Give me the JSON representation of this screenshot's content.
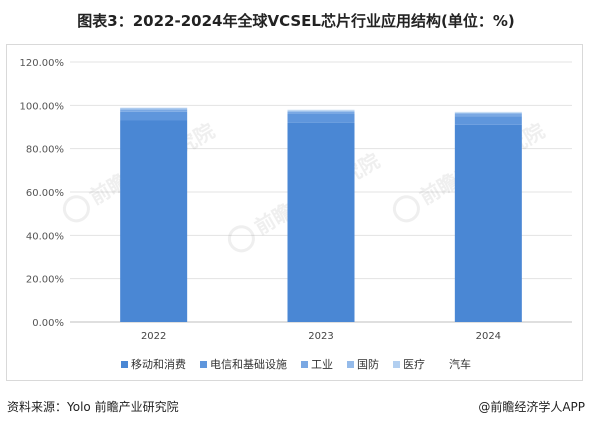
{
  "title": "图表3：2022-2024年全球VCSEL芯片行业应用结构(单位：%)",
  "footer": {
    "source": "资料来源：Yolo 前瞻产业研究院",
    "brand": "@前瞻经济学人APP"
  },
  "watermark": "前瞻产业研究院",
  "colors": {
    "移动和消费": "#4a87d4",
    "电信和基础设施": "#5f96dc",
    "工业": "#7aa8e3",
    "国防": "#95bbea",
    "医疗": "#b2cff0",
    "汽车": "#d2e3f6"
  },
  "chart_data": {
    "type": "bar",
    "stacked": true,
    "categories": [
      "2022",
      "2023",
      "2024"
    ],
    "series": [
      {
        "name": "移动和消费",
        "values": [
          93.0,
          92.0,
          91.0
        ]
      },
      {
        "name": "电信和基础设施",
        "values": [
          4.0,
          4.0,
          4.0
        ]
      },
      {
        "name": "工业",
        "values": [
          1.0,
          1.0,
          1.0
        ]
      },
      {
        "name": "国防",
        "values": [
          0.5,
          0.5,
          0.5
        ]
      },
      {
        "name": "医疗",
        "values": [
          0.3,
          0.3,
          0.3
        ]
      },
      {
        "name": "汽车",
        "values": [
          0.2,
          0.2,
          0.2
        ]
      }
    ],
    "ylim": [
      0,
      120
    ],
    "yticks": [
      "0.00%",
      "20.00%",
      "40.00%",
      "60.00%",
      "80.00%",
      "100.00%",
      "120.00%"
    ],
    "ytick_values": [
      0,
      20,
      40,
      60,
      80,
      100,
      120
    ],
    "grid": true,
    "legend_position": "bottom"
  }
}
